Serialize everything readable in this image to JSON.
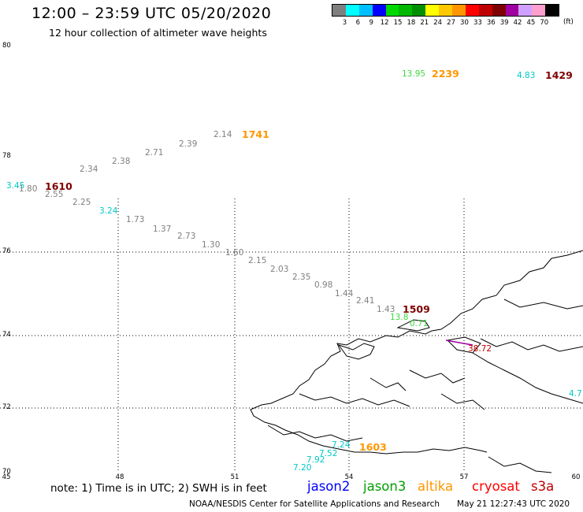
{
  "header": {
    "title": "12:00 – 23:59 UTC 05/20/2020",
    "subtitle": "12 hour collection of altimeter wave heights"
  },
  "legend": {
    "colors": [
      "#7f7f7f",
      "#00ffff",
      "#00bfff",
      "#0000ff",
      "#00d800",
      "#00b800",
      "#008f00",
      "#ffff00",
      "#ffc800",
      "#ff9600",
      "#ff0000",
      "#bf0000",
      "#7f0000",
      "#9f009f",
      "#cfa0ff",
      "#ff9fcf",
      "#000000"
    ],
    "labels": [
      "3",
      "6",
      "9",
      "12",
      "15",
      "18",
      "21",
      "24",
      "27",
      "30",
      "33",
      "36",
      "39",
      "42",
      "45",
      "70"
    ],
    "unit": "(ft)"
  },
  "axes": {
    "lat_labels": [
      "80",
      "78",
      "76",
      "74",
      "72",
      "70"
    ],
    "lon_labels": [
      "45",
      "48",
      "51",
      "54",
      "57",
      "60"
    ]
  },
  "observations": [
    {
      "text": "13.95",
      "color": "#40d840"
    },
    {
      "text": "2239",
      "color": "#ff9600",
      "big": true
    },
    {
      "text": "4.83",
      "color": "#00c8c8"
    },
    {
      "text": "1429",
      "color": "#7f0000",
      "big": true
    },
    {
      "text": "2.14",
      "color": "#808080"
    },
    {
      "text": "1741",
      "color": "#ff9600",
      "big": true
    },
    {
      "text": "2.39",
      "color": "#808080"
    },
    {
      "text": "2.71",
      "color": "#808080"
    },
    {
      "text": "2.38",
      "color": "#808080"
    },
    {
      "text": "2.34",
      "color": "#808080"
    },
    {
      "text": "3.45",
      "color": "#00c8c8"
    },
    {
      "text": "1.80",
      "color": "#808080"
    },
    {
      "text": "1610",
      "color": "#7f0000",
      "big": true
    },
    {
      "text": "2.55",
      "color": "#808080"
    },
    {
      "text": "2.25",
      "color": "#808080"
    },
    {
      "text": "3.24",
      "color": "#00c8c8"
    },
    {
      "text": "1.73",
      "color": "#808080"
    },
    {
      "text": "1.37",
      "color": "#808080"
    },
    {
      "text": "2.73",
      "color": "#808080"
    },
    {
      "text": "1.30",
      "color": "#808080"
    },
    {
      "text": "1.60",
      "color": "#808080"
    },
    {
      "text": "2.15",
      "color": "#808080"
    },
    {
      "text": "2.03",
      "color": "#808080"
    },
    {
      "text": "2.35",
      "color": "#808080"
    },
    {
      "text": "0.98",
      "color": "#808080"
    },
    {
      "text": "1.44",
      "color": "#808080"
    },
    {
      "text": "2.41",
      "color": "#808080"
    },
    {
      "text": "1.43",
      "color": "#808080"
    },
    {
      "text": "1509",
      "color": "#7f0000",
      "big": true
    },
    {
      "text": "13.8",
      "color": "#40d840"
    },
    {
      "text": "0.71",
      "color": "#40d840"
    },
    {
      "text": "38.72",
      "color": "#bf0000"
    },
    {
      "text": "4.7",
      "color": "#00c8c8"
    },
    {
      "text": "7.24",
      "color": "#00c8c8"
    },
    {
      "text": "1603",
      "color": "#ff9600",
      "big": true
    },
    {
      "text": "7.52",
      "color": "#00c8c8"
    },
    {
      "text": "7.92",
      "color": "#00c8c8"
    },
    {
      "text": "7.20",
      "color": "#00c8c8"
    }
  ],
  "footer": {
    "note": "note:  1) Time is in UTC;  2) SWH is in feet",
    "satellites": [
      {
        "name": "jason2",
        "color": "#0000ff"
      },
      {
        "name": "jason3",
        "color": "#009f00"
      },
      {
        "name": "altika",
        "color": "#ff9600"
      },
      {
        "name": "cryosat",
        "color": "#ff0000"
      },
      {
        "name": "s3a",
        "color": "#bf0000"
      }
    ],
    "credit": "NOAA/NESDIS Center for Satellite Applications and Research",
    "timestamp": "May 21 12:27:43 UTC 2020"
  }
}
